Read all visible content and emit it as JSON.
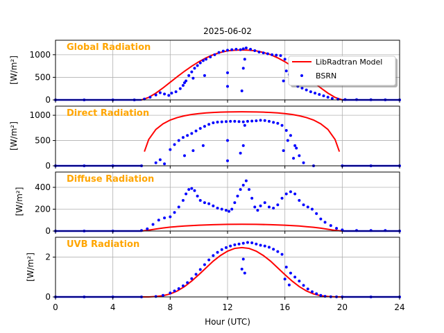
{
  "figure": {
    "title": "2025-06-02",
    "xlabel": "Hour (UTC)",
    "xticks": [
      "0",
      "4",
      "8",
      "12",
      "16",
      "20",
      "24"
    ],
    "xlim": [
      0,
      24
    ],
    "colors": {
      "model": "#ff0000",
      "obs": "#0000ff",
      "panel_label": "#ffa500"
    },
    "legend": {
      "placement": "upper-right of first panel",
      "entries": [
        "LibRadtran Model",
        "BSRN"
      ]
    }
  },
  "chart_data": [
    {
      "type": "line",
      "title": "Global Radiation",
      "ylabel": "[W/m²]",
      "ylim": [
        0,
        1320
      ],
      "yticks": [
        0,
        500,
        1000
      ],
      "series": [
        {
          "name": "LibRadtran Model",
          "style": "line",
          "x": [
            0,
            6.0,
            6.5,
            7,
            7.5,
            8,
            8.5,
            9,
            9.5,
            10,
            10.5,
            11,
            11.5,
            12,
            12.5,
            13,
            13.5,
            14,
            14.5,
            15,
            15.5,
            16,
            16.5,
            17,
            17.5,
            18,
            18.5,
            19,
            19.5,
            20,
            24
          ],
          "y": [
            0,
            0,
            55,
            150,
            265,
            390,
            515,
            635,
            745,
            845,
            930,
            1000,
            1050,
            1085,
            1100,
            1105,
            1100,
            1085,
            1050,
            1000,
            930,
            845,
            745,
            635,
            515,
            390,
            265,
            150,
            55,
            0,
            0
          ]
        },
        {
          "name": "BSRN",
          "style": "points",
          "x": [
            0,
            2,
            4,
            5.5,
            6.2,
            6.6,
            7.0,
            7.3,
            7.6,
            7.9,
            8.1,
            8.4,
            8.7,
            8.9,
            9.1,
            9.3,
            9.5,
            9.7,
            9.9,
            10.1,
            10.3,
            10.5,
            10.8,
            11.1,
            11.4,
            11.7,
            12.0,
            12.3,
            12.6,
            12.9,
            13.1,
            13.3,
            13.6,
            13.9,
            14.2,
            14.5,
            14.8,
            15.1,
            15.4,
            15.7,
            16.0,
            16.3,
            16.6,
            16.9,
            17.2,
            17.5,
            17.8,
            18.1,
            18.4,
            18.7,
            19.0,
            19.3,
            19.7,
            20.2,
            21,
            22,
            23,
            24,
            9.0,
            9.6,
            10.4,
            12.0,
            12.0,
            13.0,
            13.1,
            13.2,
            15.9,
            16.1,
            16.4
          ],
          "y": [
            0,
            0,
            0,
            0,
            20,
            60,
            110,
            160,
            130,
            100,
            150,
            180,
            250,
            320,
            420,
            540,
            620,
            700,
            760,
            820,
            870,
            900,
            950,
            1000,
            1050,
            1080,
            1100,
            1110,
            1120,
            1110,
            1130,
            1150,
            1120,
            1090,
            1060,
            1040,
            1020,
            1000,
            990,
            980,
            900,
            560,
            380,
            300,
            260,
            220,
            180,
            150,
            120,
            90,
            60,
            30,
            15,
            8,
            5,
            3,
            2,
            0,
            380,
            480,
            540,
            300,
            600,
            200,
            700,
            900,
            420,
            640,
            560
          ]
        }
      ]
    },
    {
      "type": "line",
      "title": "Direct Radiation",
      "ylabel": "[W/m²]",
      "ylim": [
        0,
        1180
      ],
      "yticks": [
        0,
        500,
        1000
      ],
      "series": [
        {
          "name": "LibRadtran Model",
          "style": "line",
          "x": [
            6.2,
            6.5,
            7,
            7.5,
            8,
            8.5,
            9,
            9.5,
            10,
            10.5,
            11,
            11.5,
            12,
            12.5,
            13,
            13.5,
            14,
            14.5,
            15,
            15.5,
            16,
            16.5,
            17,
            17.5,
            18,
            18.5,
            19,
            19.5,
            19.8
          ],
          "y": [
            280,
            520,
            720,
            830,
            905,
            955,
            990,
            1015,
            1033,
            1046,
            1055,
            1061,
            1065,
            1067,
            1068,
            1067,
            1065,
            1061,
            1055,
            1046,
            1033,
            1015,
            990,
            955,
            905,
            830,
            720,
            520,
            280
          ]
        },
        {
          "name": "BSRN",
          "style": "points",
          "x": [
            0,
            2,
            4,
            6,
            7.0,
            7.3,
            7.6,
            8.0,
            8.3,
            8.6,
            8.9,
            9.2,
            9.5,
            9.8,
            10.1,
            10.4,
            10.7,
            11.0,
            11.3,
            11.6,
            11.9,
            12.2,
            12.5,
            12.8,
            13.1,
            13.4,
            13.7,
            14.0,
            14.3,
            14.6,
            14.9,
            15.2,
            15.5,
            15.8,
            16.1,
            16.4,
            16.7,
            17.0,
            17.3,
            18,
            20,
            22,
            24,
            9.0,
            9.6,
            10.3,
            12.0,
            12.0,
            12.9,
            13.1,
            13.2,
            15.9,
            16.2,
            16.6,
            16.8
          ],
          "y": [
            0,
            0,
            0,
            0,
            60,
            120,
            40,
            320,
            420,
            500,
            560,
            600,
            640,
            690,
            740,
            780,
            820,
            850,
            865,
            870,
            875,
            880,
            880,
            875,
            870,
            880,
            885,
            890,
            900,
            895,
            880,
            860,
            840,
            800,
            700,
            600,
            400,
            200,
            60,
            0,
            0,
            0,
            0,
            200,
            300,
            400,
            100,
            500,
            250,
            400,
            800,
            300,
            500,
            150,
            350
          ]
        }
      ]
    },
    {
      "type": "line",
      "title": "Diffuse Radiation",
      "ylabel": "[W/m²]",
      "ylim": [
        0,
        540
      ],
      "yticks": [
        0,
        200,
        400
      ],
      "series": [
        {
          "name": "LibRadtran Model",
          "style": "line",
          "x": [
            0,
            6.0,
            6.5,
            7,
            7.5,
            8,
            9,
            10,
            11,
            12,
            13,
            14,
            15,
            16,
            17,
            17.5,
            18,
            18.5,
            19,
            19.5,
            20,
            24
          ],
          "y": [
            0,
            0,
            8,
            18,
            28,
            36,
            46,
            53,
            58,
            61,
            62,
            61,
            58,
            53,
            46,
            40,
            34,
            26,
            16,
            6,
            0,
            0
          ]
        },
        {
          "name": "BSRN",
          "style": "points",
          "x": [
            0,
            2,
            4,
            6.0,
            6.4,
            6.8,
            7.2,
            7.6,
            8.0,
            8.3,
            8.6,
            8.9,
            9.1,
            9.3,
            9.5,
            9.7,
            9.9,
            10.1,
            10.4,
            10.7,
            11.0,
            11.3,
            11.6,
            11.9,
            12.1,
            12.3,
            12.5,
            12.7,
            12.9,
            13.1,
            13.3,
            13.5,
            13.7,
            13.9,
            14.1,
            14.3,
            14.6,
            14.9,
            15.2,
            15.5,
            15.8,
            16.1,
            16.4,
            16.7,
            17.0,
            17.3,
            17.6,
            17.9,
            18.2,
            18.5,
            18.8,
            19.2,
            19.6,
            20.0,
            21,
            22,
            23,
            24
          ],
          "y": [
            0,
            0,
            0,
            5,
            20,
            60,
            100,
            120,
            130,
            170,
            220,
            280,
            340,
            380,
            390,
            370,
            320,
            280,
            260,
            250,
            230,
            210,
            200,
            190,
            180,
            200,
            260,
            320,
            380,
            420,
            460,
            380,
            300,
            220,
            190,
            230,
            260,
            220,
            210,
            240,
            300,
            340,
            360,
            340,
            280,
            240,
            220,
            200,
            160,
            110,
            80,
            50,
            25,
            10,
            5,
            5,
            5,
            0
          ]
        }
      ]
    },
    {
      "type": "line",
      "title": "UVB Radiation",
      "ylabel": "[W/m²]",
      "ylim": [
        0,
        3.0
      ],
      "yticks": [
        0,
        2
      ],
      "series": [
        {
          "name": "LibRadtran Model",
          "style": "line",
          "x": [
            0,
            6.5,
            7,
            7.5,
            8,
            8.5,
            9,
            9.5,
            10,
            10.5,
            11,
            11.5,
            12,
            12.5,
            13,
            13.5,
            14,
            14.5,
            15,
            15.5,
            16,
            16.5,
            17,
            17.5,
            18,
            18.5,
            19,
            19.5,
            20,
            24
          ],
          "y": [
            0,
            0,
            0.02,
            0.06,
            0.15,
            0.3,
            0.52,
            0.8,
            1.12,
            1.46,
            1.8,
            2.08,
            2.3,
            2.44,
            2.48,
            2.44,
            2.3,
            2.08,
            1.8,
            1.46,
            1.12,
            0.8,
            0.52,
            0.3,
            0.15,
            0.06,
            0.02,
            0.005,
            0,
            0
          ]
        },
        {
          "name": "BSRN",
          "style": "points",
          "x": [
            0,
            2,
            4,
            6,
            7.0,
            7.5,
            8.0,
            8.3,
            8.6,
            8.9,
            9.2,
            9.5,
            9.8,
            10.1,
            10.4,
            10.7,
            11.0,
            11.3,
            11.6,
            11.9,
            12.2,
            12.5,
            12.8,
            13.1,
            13.4,
            13.7,
            14.0,
            14.3,
            14.6,
            14.9,
            15.2,
            15.5,
            15.8,
            16.1,
            16.4,
            16.7,
            17.0,
            17.3,
            17.6,
            17.9,
            18.2,
            18.5,
            18.8,
            19.2,
            19.6,
            20,
            22,
            24,
            13.0,
            13.1,
            13.2,
            16.0,
            16.3
          ],
          "y": [
            0,
            0,
            0,
            0,
            0.02,
            0.08,
            0.2,
            0.3,
            0.42,
            0.56,
            0.72,
            0.92,
            1.14,
            1.38,
            1.62,
            1.86,
            2.08,
            2.24,
            2.38,
            2.48,
            2.56,
            2.62,
            2.66,
            2.7,
            2.74,
            2.72,
            2.66,
            2.6,
            2.56,
            2.5,
            2.4,
            2.28,
            2.14,
            1.5,
            1.2,
            1.0,
            0.8,
            0.58,
            0.4,
            0.26,
            0.16,
            0.08,
            0.03,
            0.01,
            0.005,
            0,
            0,
            0,
            1.4,
            1.9,
            1.2,
            0.9,
            0.6
          ]
        }
      ]
    }
  ]
}
